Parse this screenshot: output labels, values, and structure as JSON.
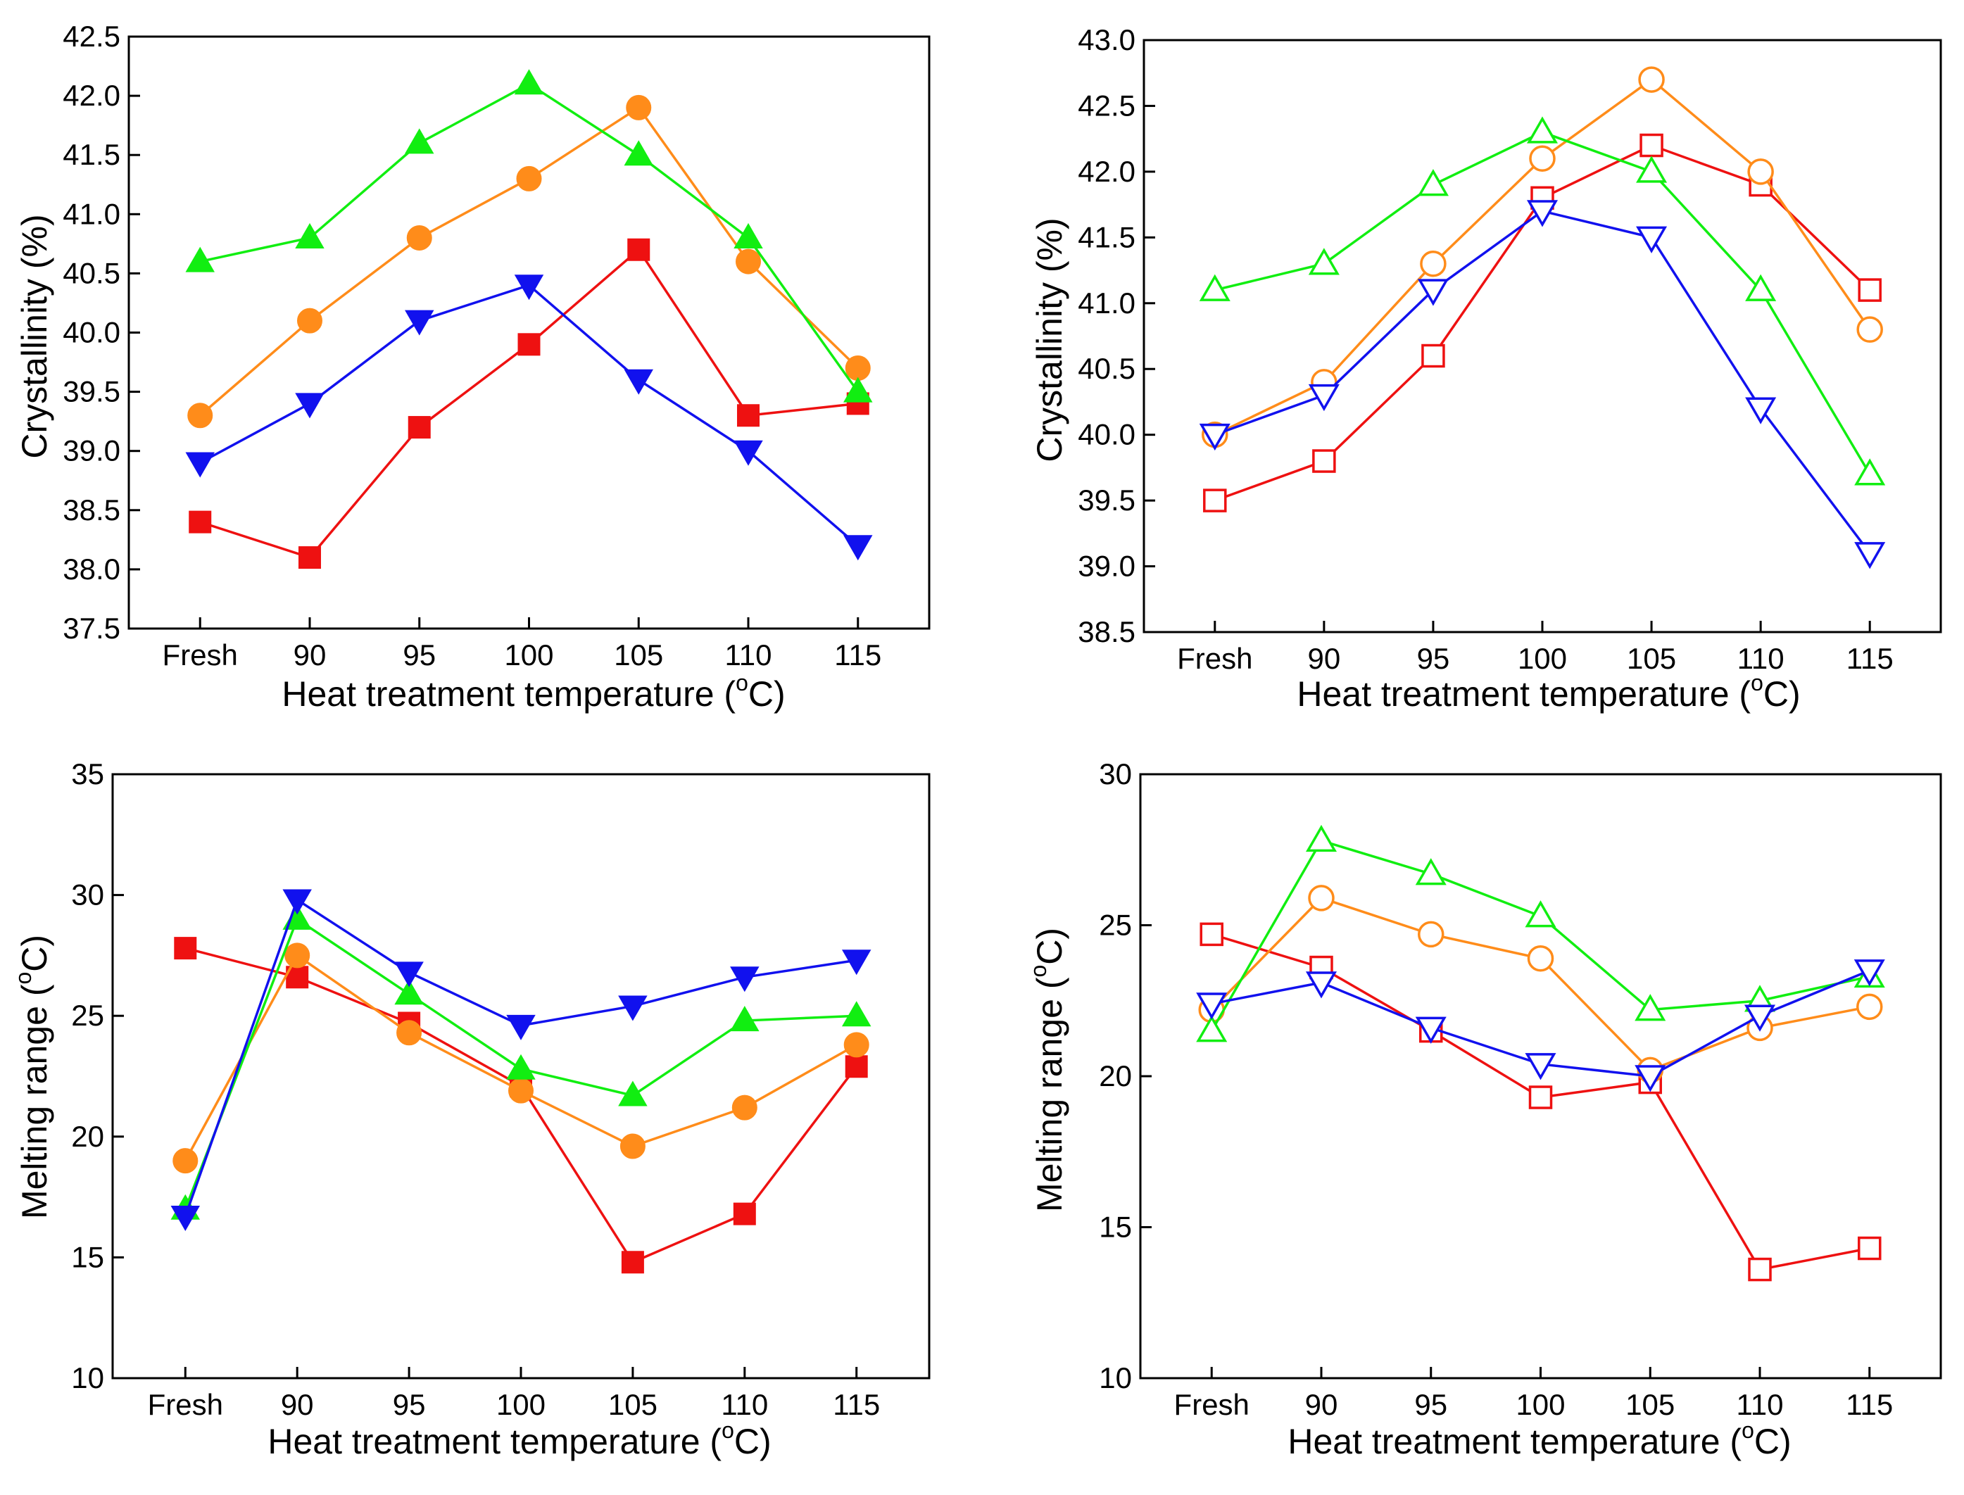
{
  "chart_data": [
    {
      "type": "line",
      "panel": "top-left",
      "marker_fill": "filled",
      "categories": [
        "Fresh",
        "90",
        "95",
        "100",
        "105",
        "110",
        "115"
      ],
      "series": [
        {
          "name": "red-square",
          "color": "#ee1111",
          "marker": "square",
          "values": [
            38.4,
            38.1,
            39.2,
            39.9,
            40.7,
            39.3,
            39.4
          ]
        },
        {
          "name": "orange-circle",
          "color": "#ff8c1a",
          "marker": "circle",
          "values": [
            39.3,
            40.1,
            40.8,
            41.3,
            41.9,
            40.6,
            39.7
          ]
        },
        {
          "name": "green-triangle-up",
          "color": "#11ee11",
          "marker": "triangle-up",
          "values": [
            40.6,
            40.8,
            41.6,
            42.1,
            41.5,
            40.8,
            39.5
          ]
        },
        {
          "name": "blue-triangle-down",
          "color": "#1111ee",
          "marker": "triangle-down",
          "values": [
            38.9,
            39.4,
            40.1,
            40.4,
            39.6,
            39.0,
            38.2
          ]
        }
      ],
      "ylim": [
        37.5,
        42.5
      ],
      "yticks": [
        "37.5",
        "38.0",
        "38.5",
        "39.0",
        "39.5",
        "40.0",
        "40.5",
        "41.0",
        "41.5",
        "42.0",
        "42.5"
      ],
      "xlabel": "Heat treatment temperature (",
      "xlabel_sup": "o",
      "xlabel_end": "C)",
      "ylabel": "Crystallinity (%)",
      "ylabel_sup": "",
      "ylabel_end": ""
    },
    {
      "type": "line",
      "panel": "top-right",
      "marker_fill": "open",
      "categories": [
        "Fresh",
        "90",
        "95",
        "100",
        "105",
        "110",
        "115"
      ],
      "series": [
        {
          "name": "red-square",
          "color": "#ee1111",
          "marker": "square",
          "values": [
            39.5,
            39.8,
            40.6,
            41.8,
            42.2,
            41.9,
            41.1
          ]
        },
        {
          "name": "orange-circle",
          "color": "#ff8c1a",
          "marker": "circle",
          "values": [
            40.0,
            40.4,
            41.3,
            42.1,
            42.7,
            42.0,
            40.8
          ]
        },
        {
          "name": "green-triangle-up",
          "color": "#11ee11",
          "marker": "triangle-up",
          "values": [
            41.1,
            41.3,
            41.9,
            42.3,
            42.0,
            41.1,
            39.7
          ]
        },
        {
          "name": "blue-triangle-down",
          "color": "#1111ee",
          "marker": "triangle-down",
          "values": [
            40.0,
            40.3,
            41.1,
            41.7,
            41.5,
            40.2,
            39.1
          ]
        }
      ],
      "ylim": [
        38.5,
        43.0
      ],
      "yticks": [
        "38.5",
        "39.0",
        "39.5",
        "40.0",
        "40.5",
        "41.0",
        "41.5",
        "42.0",
        "42.5",
        "43.0"
      ],
      "xlabel": "Heat treatment temperature (",
      "xlabel_sup": "o",
      "xlabel_end": "C)",
      "ylabel": "Crystallinity (%)",
      "ylabel_sup": "",
      "ylabel_end": ""
    },
    {
      "type": "line",
      "panel": "bottom-left",
      "marker_fill": "filled",
      "categories": [
        "Fresh",
        "90",
        "95",
        "100",
        "105",
        "110",
        "115"
      ],
      "series": [
        {
          "name": "red-square",
          "color": "#ee1111",
          "marker": "square",
          "values": [
            27.8,
            26.6,
            24.7,
            22.1,
            14.8,
            16.8,
            22.9
          ]
        },
        {
          "name": "orange-circle",
          "color": "#ff8c1a",
          "marker": "circle",
          "values": [
            19.0,
            27.5,
            24.3,
            21.9,
            19.6,
            21.2,
            23.8
          ]
        },
        {
          "name": "green-triangle-up",
          "color": "#11ee11",
          "marker": "triangle-up",
          "values": [
            17.0,
            29.0,
            25.9,
            22.8,
            21.7,
            24.8,
            25.0
          ]
        },
        {
          "name": "blue-triangle-down",
          "color": "#1111ee",
          "marker": "triangle-down",
          "values": [
            16.7,
            29.8,
            26.8,
            24.6,
            25.4,
            26.6,
            27.3
          ]
        }
      ],
      "ylim": [
        10,
        35
      ],
      "yticks": [
        "10",
        "15",
        "20",
        "25",
        "30",
        "35"
      ],
      "xlabel": "Heat treatment temperature (",
      "xlabel_sup": "o",
      "xlabel_end": "C)",
      "ylabel": "Melting range (",
      "ylabel_sup": "o",
      "ylabel_end": "C)"
    },
    {
      "type": "line",
      "panel": "bottom-right",
      "marker_fill": "open",
      "categories": [
        "Fresh",
        "90",
        "95",
        "100",
        "105",
        "110",
        "115"
      ],
      "series": [
        {
          "name": "red-square",
          "color": "#ee1111",
          "marker": "square",
          "values": [
            24.7,
            23.6,
            21.5,
            19.3,
            19.8,
            13.6,
            14.3
          ]
        },
        {
          "name": "orange-circle",
          "color": "#ff8c1a",
          "marker": "circle",
          "values": [
            22.2,
            25.9,
            24.7,
            23.9,
            20.2,
            21.6,
            22.3
          ]
        },
        {
          "name": "green-triangle-up",
          "color": "#11ee11",
          "marker": "triangle-up",
          "values": [
            21.5,
            27.8,
            26.7,
            25.3,
            22.2,
            22.5,
            23.3
          ]
        },
        {
          "name": "blue-triangle-down",
          "color": "#1111ee",
          "marker": "triangle-down",
          "values": [
            22.4,
            23.1,
            21.6,
            20.4,
            20.0,
            22.0,
            23.5
          ]
        }
      ],
      "ylim": [
        10,
        30
      ],
      "yticks": [
        "10",
        "15",
        "20",
        "25",
        "30"
      ],
      "xlabel": "Heat treatment temperature (",
      "xlabel_sup": "o",
      "xlabel_end": "C)",
      "ylabel": "Melting range (",
      "ylabel_sup": "o",
      "ylabel_end": "C)"
    }
  ]
}
